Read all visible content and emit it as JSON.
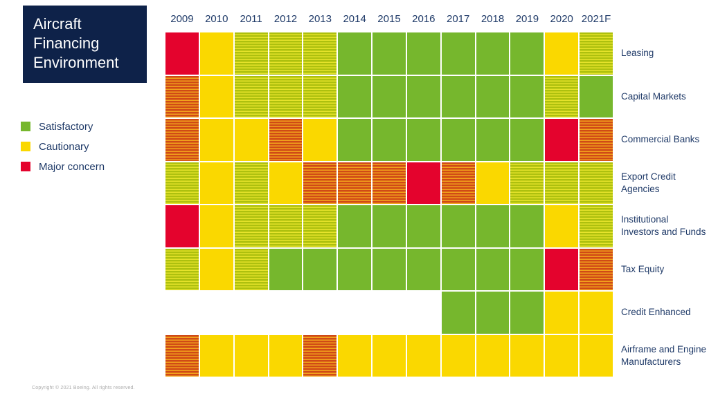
{
  "title": "Aircraft Financing Environment",
  "legend": [
    {
      "label": "Satisfactory",
      "color": "#76b72d",
      "key": "G"
    },
    {
      "label": "Cautionary",
      "color": "#fad800",
      "key": "Y"
    },
    {
      "label": "Major concern",
      "color": "#e4032d",
      "key": "R"
    }
  ],
  "footer": {
    "copyright": "Copyright © 2021 Boeing. All rights reserved."
  },
  "colors": {
    "title_background": "#0e2249",
    "text": "#1f3a68",
    "satisfactory": "#76b72d",
    "cautionary": "#fad800",
    "major_concern": "#e4032d",
    "stripe_satisfactory_cautionary": [
      "#adc00e",
      "#e6e32b"
    ],
    "stripe_cautionary_major_concern": [
      "#d04a16",
      "#f2a41c"
    ]
  },
  "chart_data": {
    "type": "heatmap",
    "title": "Aircraft Financing Environment",
    "x": [
      "2009",
      "2010",
      "2011",
      "2012",
      "2013",
      "2014",
      "2015",
      "2016",
      "2017",
      "2018",
      "2019",
      "2020",
      "2021F"
    ],
    "value_scale": {
      "G": "Satisfactory",
      "GY": "Between satisfactory and cautionary (striped)",
      "Y": "Cautionary",
      "YR": "Between cautionary and major concern (striped)",
      "R": "Major concern",
      "null": "No data"
    },
    "legend_position": "left",
    "grid": "white gutters between cells",
    "rows": [
      {
        "label": "Leasing",
        "values": [
          "R",
          "Y",
          "GY",
          "GY",
          "GY",
          "G",
          "G",
          "G",
          "G",
          "G",
          "G",
          "Y",
          "GY"
        ]
      },
      {
        "label": "Capital Markets",
        "values": [
          "YR",
          "Y",
          "GY",
          "GY",
          "GY",
          "G",
          "G",
          "G",
          "G",
          "G",
          "G",
          "GY",
          "G"
        ]
      },
      {
        "label": "Commercial Banks",
        "values": [
          "YR",
          "Y",
          "Y",
          "YR",
          "Y",
          "G",
          "G",
          "G",
          "G",
          "G",
          "G",
          "R",
          "YR"
        ]
      },
      {
        "label": "Export Credit Agencies",
        "values": [
          "GY",
          "Y",
          "GY",
          "Y",
          "YR",
          "YR",
          "YR",
          "R",
          "YR",
          "Y",
          "GY",
          "GY",
          "GY"
        ]
      },
      {
        "label": "Institutional Investors and Funds",
        "values": [
          "R",
          "Y",
          "GY",
          "GY",
          "GY",
          "G",
          "G",
          "G",
          "G",
          "G",
          "G",
          "Y",
          "GY"
        ]
      },
      {
        "label": "Tax Equity",
        "values": [
          "GY",
          "Y",
          "GY",
          "G",
          "G",
          "G",
          "G",
          "G",
          "G",
          "G",
          "G",
          "R",
          "YR"
        ]
      },
      {
        "label": "Credit Enhanced",
        "values": [
          null,
          null,
          null,
          null,
          null,
          null,
          null,
          null,
          "G",
          "G",
          "G",
          "Y",
          "Y"
        ]
      },
      {
        "label": "Airframe and Engine Manufacturers",
        "values": [
          "YR",
          "Y",
          "Y",
          "Y",
          "YR",
          "Y",
          "Y",
          "Y",
          "Y",
          "Y",
          "Y",
          "Y",
          "Y"
        ]
      }
    ]
  }
}
